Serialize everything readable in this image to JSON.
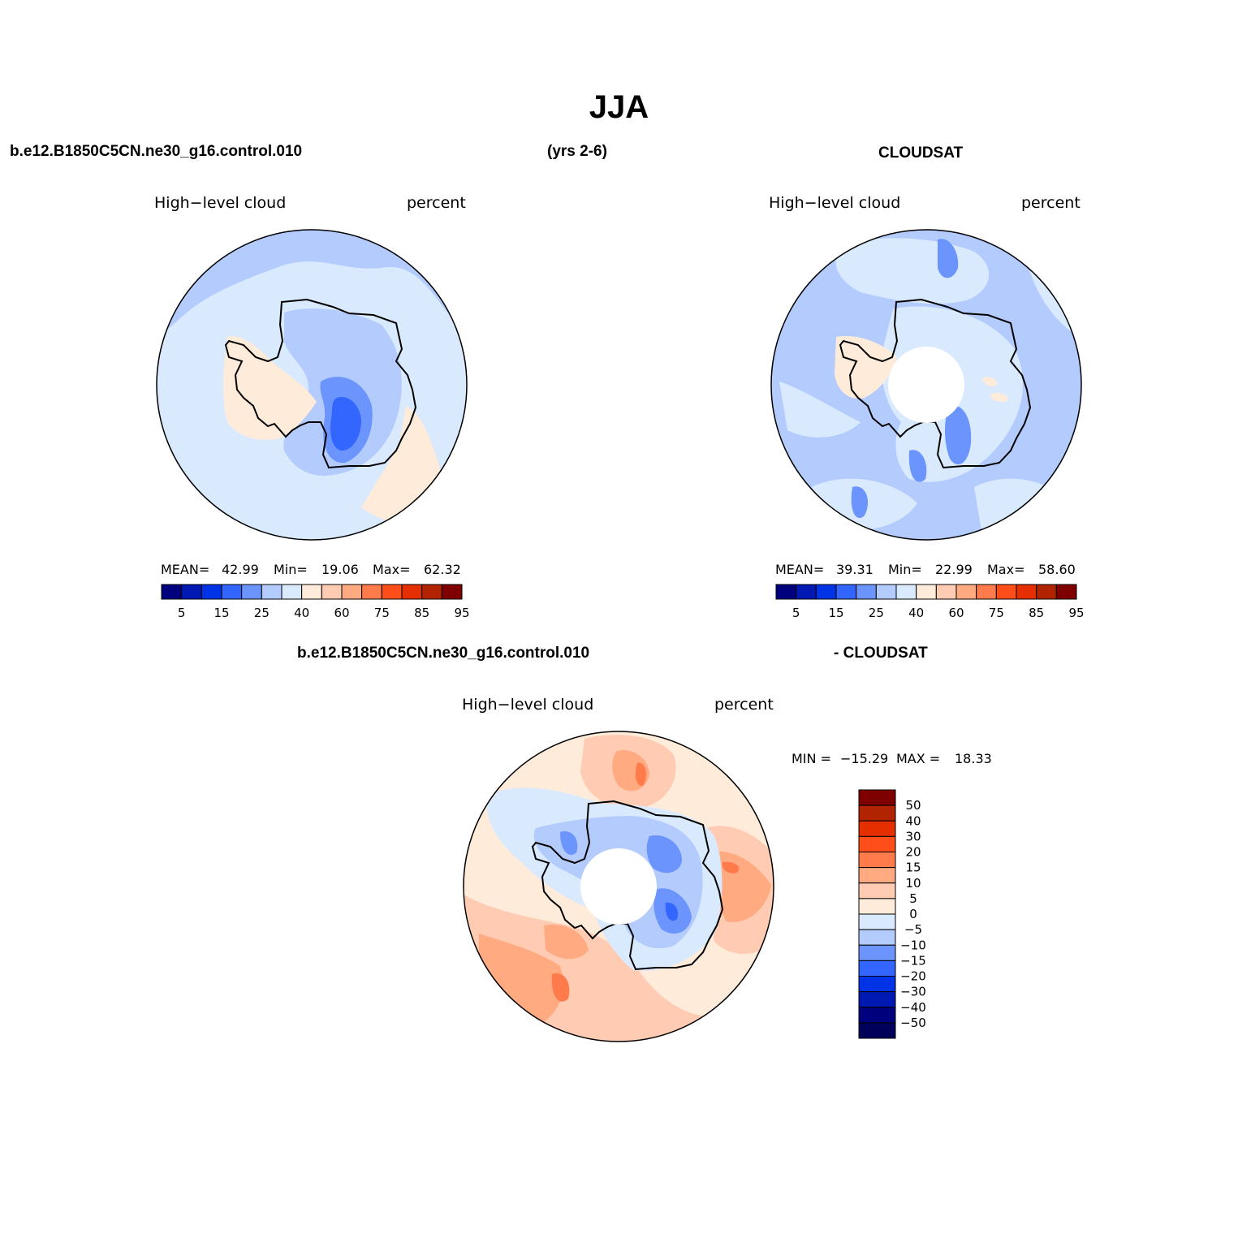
{
  "title": "JJA",
  "panels": {
    "model": {
      "case": "b.e12.B1850C5CN.ne30_g16.control.010",
      "period": "(yrs 2-6)",
      "variable": "High−level cloud",
      "units": "percent",
      "stats": {
        "mean_label": "MEAN=",
        "mean": "42.99",
        "min_label": "Min=",
        "min": "19.06",
        "max_label": "Max=",
        "max": "62.32"
      }
    },
    "obs": {
      "case": "CLOUDSAT",
      "variable": "High−level cloud",
      "units": "percent",
      "stats": {
        "mean_label": "MEAN=",
        "mean": "39.31",
        "min_label": "Min=",
        "min": "22.99",
        "max_label": "Max=",
        "max": "58.60"
      }
    },
    "diff": {
      "case_a": "b.e12.B1850C5CN.ne30_g16.control.010",
      "case_b": "- CLOUDSAT",
      "variable": "High−level cloud",
      "units": "percent",
      "minmax": {
        "min_label": "MIN =",
        "min": "−15.29",
        "max_label": "MAX =",
        "max": "18.33"
      }
    }
  },
  "colorbar_main": {
    "colors": [
      "#00007f",
      "#0019b2",
      "#0033e5",
      "#3366ff",
      "#6b94fd",
      "#b3cbfd",
      "#d9eaff",
      "#ffebd9",
      "#ffcbb3",
      "#ffaa80",
      "#ff7b4c",
      "#ff4e19",
      "#e52f00",
      "#b22300",
      "#7f0000"
    ],
    "tick_labels": [
      "5",
      "15",
      "25",
      "40",
      "60",
      "75",
      "85",
      "95"
    ]
  },
  "colorbar_diff": {
    "colors_top_to_bottom": [
      "#7f0000",
      "#b22300",
      "#e52f00",
      "#ff4e19",
      "#ff7b4c",
      "#ffaa80",
      "#ffcbb3",
      "#ffebd9",
      "#d9eaff",
      "#b3cbfd",
      "#6b94fd",
      "#3366ff",
      "#0033e5",
      "#0019b2",
      "#00007f",
      "#00005a"
    ],
    "tick_labels_top_to_bottom": [
      "50",
      "40",
      "30",
      "20",
      "15",
      "10",
      "5",
      "0",
      "−5",
      "−10",
      "−15",
      "−20",
      "−30",
      "−40",
      "−50"
    ]
  },
  "map_colors": {
    "pale_blue": "#d9eaff",
    "light_blue": "#b3cbfd",
    "mid_blue": "#6b94fd",
    "blue": "#3366ff",
    "pale_orange": "#ffebd9",
    "light_orange": "#ffcbb3",
    "orange": "#ffaa80",
    "dark_orange": "#ff7b4c"
  }
}
